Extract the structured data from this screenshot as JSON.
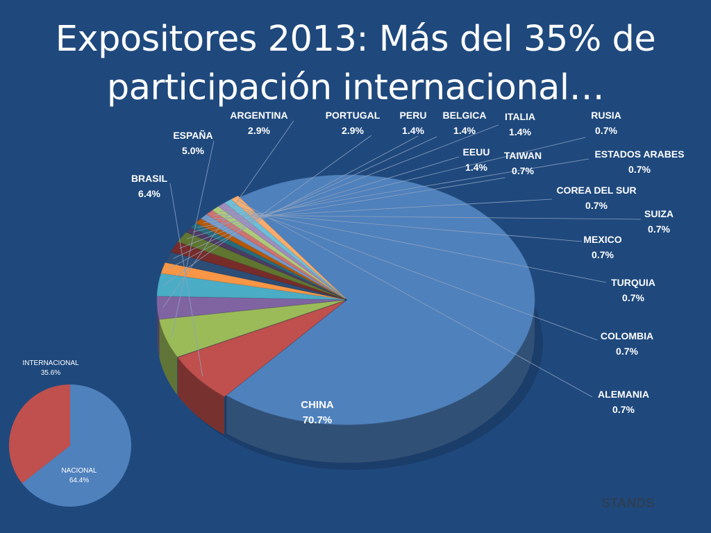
{
  "title": {
    "line1": "Expositores 2013: Más del 35% de",
    "line2": "participación internacional…"
  },
  "footer": {
    "label": "STANDS"
  },
  "chart_data": [
    {
      "type": "pie",
      "style": "3d-exploded",
      "categories": [
        "CHINA",
        "BRASIL",
        "ESPAÑA",
        "ARGENTINA",
        "PORTUGAL",
        "PERU",
        "BELGICA",
        "ITALIA",
        "EEUU",
        "RUSIA",
        "TAIWAN",
        "ESTADOS ARABES",
        "COREA DEL SUR",
        "SUIZA",
        "MEXICO",
        "TURQUIA",
        "COLOMBIA",
        "ALEMANIA"
      ],
      "values": [
        70.7,
        6.4,
        5.0,
        2.9,
        2.9,
        1.4,
        1.4,
        1.4,
        1.4,
        0.7,
        0.7,
        0.7,
        0.7,
        0.7,
        0.7,
        0.7,
        0.7,
        0.7
      ],
      "labels": [
        "70.7%",
        "6.4%",
        "5.0%",
        "2.9%",
        "2.9%",
        "1.4%",
        "1.4%",
        "1.4%",
        "1.4%",
        "0.7%",
        "0.7%",
        "0.7%",
        "0.7%",
        "0.7%",
        "0.7%",
        "0.7%",
        "0.7%",
        "0.7%"
      ],
      "colors": [
        "#4f81bd",
        "#c0504d",
        "#9bbb59",
        "#8064a2",
        "#4bacc6",
        "#f79646",
        "#2c4d75",
        "#772c2a",
        "#5f7530",
        "#4d3b62",
        "#276a7c",
        "#b65708",
        "#729aca",
        "#cd7371",
        "#afc97a",
        "#a08cbd",
        "#6ec0d8",
        "#f9ac6d"
      ],
      "legend": "none"
    },
    {
      "type": "pie",
      "categories": [
        "NACIONAL",
        "INTERNACIONAL"
      ],
      "values": [
        64.4,
        35.6
      ],
      "labels": [
        "64.4%",
        "35.6%"
      ],
      "colors": [
        "#4f81bd",
        "#c0504d"
      ],
      "legend": "none"
    }
  ]
}
